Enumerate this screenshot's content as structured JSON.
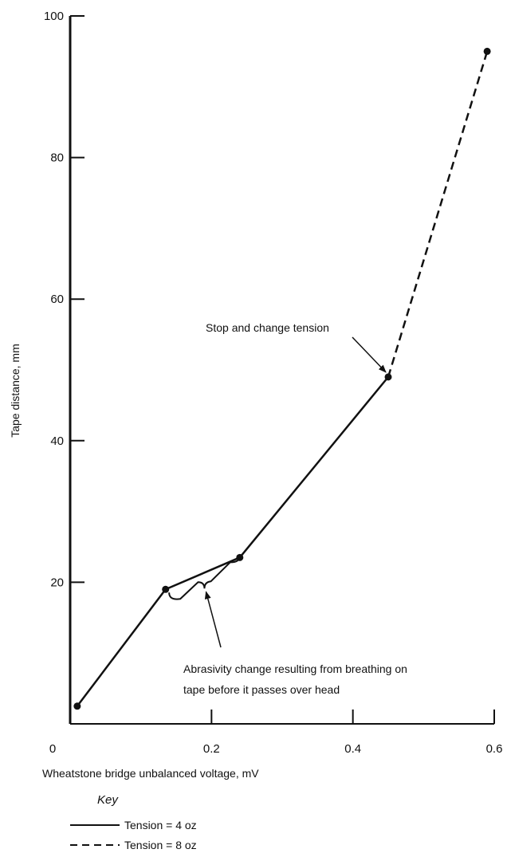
{
  "chart_data": {
    "type": "line",
    "xlabel": "Wheatstone bridge unbalanced voltage, mV",
    "ylabel": "Tape distance, mm",
    "xlim": [
      0,
      0.6
    ],
    "ylim": [
      0,
      100
    ],
    "xticks": [
      0,
      0.2,
      0.4,
      0.6
    ],
    "xtick_labels": [
      "0",
      "0.2",
      "0.4",
      "0.6"
    ],
    "yticks": [
      20,
      40,
      60,
      80,
      100
    ],
    "ytick_labels": [
      "20",
      "40",
      "60",
      "80",
      "100"
    ],
    "grid": false,
    "series": [
      {
        "name": "Tension = 4 oz",
        "style": "solid",
        "color": "#111111",
        "x": [
          0.01,
          0.135,
          0.24,
          0.45
        ],
        "y": [
          2.5,
          19,
          23.5,
          49
        ]
      },
      {
        "name": "Tension = 8 oz",
        "style": "dashed",
        "color": "#111111",
        "x": [
          0.45,
          0.59
        ],
        "y": [
          49,
          95
        ]
      }
    ],
    "points": [
      {
        "x": 0.01,
        "y": 2.5
      },
      {
        "x": 0.135,
        "y": 19
      },
      {
        "x": 0.24,
        "y": 23.5
      },
      {
        "x": 0.45,
        "y": 49
      },
      {
        "x": 0.59,
        "y": 95
      }
    ],
    "annotations": {
      "stop": {
        "text": "Stop and change tension",
        "target": {
          "x": 0.45,
          "y": 49
        }
      },
      "abrasivity": {
        "line1": "Abrasivity change resulting from breathing on",
        "line2": "tape before it passes over head",
        "brace_range": [
          0.14,
          0.24
        ]
      }
    },
    "legend": {
      "title": "Key",
      "placement": "bottom-left",
      "items": [
        "Tension = 4 oz",
        "Tension = 8 oz"
      ]
    }
  }
}
